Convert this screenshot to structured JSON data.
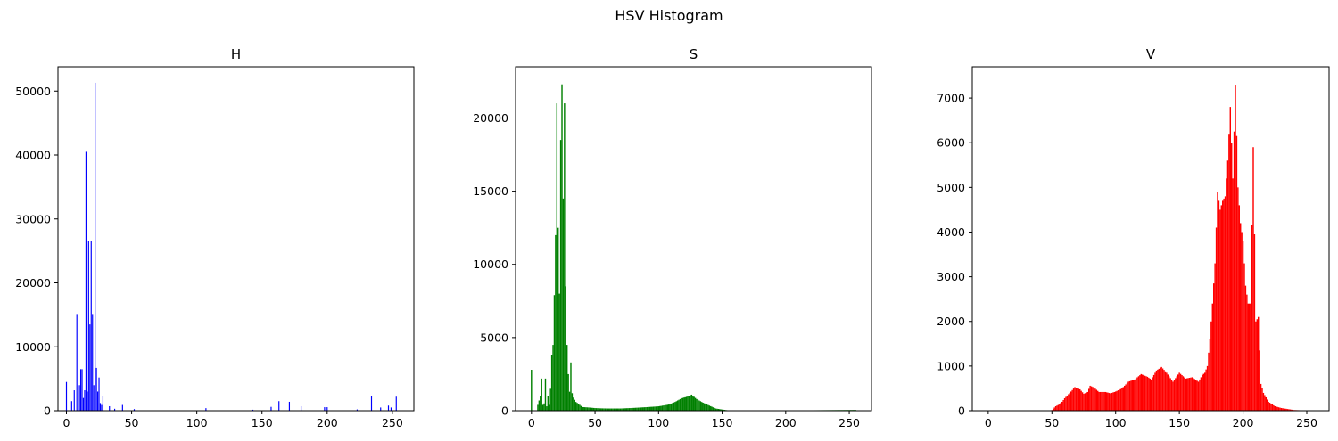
{
  "figure": {
    "suptitle": "HSV Histogram"
  },
  "chart_data": [
    {
      "type": "bar",
      "title": "H",
      "color": "#0000ff",
      "xlim": [
        -6.5,
        266.5
      ],
      "ylim": [
        0,
        53800
      ],
      "xticks": [
        0,
        50,
        100,
        150,
        200,
        250
      ],
      "yticks": [
        0,
        10000,
        20000,
        30000,
        40000,
        50000
      ],
      "bars": [
        {
          "x": 0,
          "y": 4500
        },
        {
          "x": 4,
          "y": 1500
        },
        {
          "x": 6,
          "y": 3200
        },
        {
          "x": 8,
          "y": 15000
        },
        {
          "x": 10,
          "y": 4000
        },
        {
          "x": 11,
          "y": 6500
        },
        {
          "x": 12,
          "y": 6500
        },
        {
          "x": 13,
          "y": 2000
        },
        {
          "x": 14,
          "y": 3200
        },
        {
          "x": 15,
          "y": 40500
        },
        {
          "x": 16,
          "y": 3000
        },
        {
          "x": 17,
          "y": 26500
        },
        {
          "x": 18,
          "y": 13500
        },
        {
          "x": 19,
          "y": 26500
        },
        {
          "x": 20,
          "y": 15000
        },
        {
          "x": 21,
          "y": 4000
        },
        {
          "x": 22,
          "y": 51300
        },
        {
          "x": 23,
          "y": 6700
        },
        {
          "x": 24,
          "y": 3000
        },
        {
          "x": 25,
          "y": 5200
        },
        {
          "x": 26,
          "y": 1200
        },
        {
          "x": 27,
          "y": 900
        },
        {
          "x": 28,
          "y": 2300
        },
        {
          "x": 33,
          "y": 700
        },
        {
          "x": 37,
          "y": 300
        },
        {
          "x": 43,
          "y": 900
        },
        {
          "x": 52,
          "y": 250
        },
        {
          "x": 107,
          "y": 400
        },
        {
          "x": 143,
          "y": 150
        },
        {
          "x": 157,
          "y": 600
        },
        {
          "x": 163,
          "y": 1500
        },
        {
          "x": 171,
          "y": 1400
        },
        {
          "x": 180,
          "y": 700
        },
        {
          "x": 198,
          "y": 550
        },
        {
          "x": 200,
          "y": 550
        },
        {
          "x": 223,
          "y": 200
        },
        {
          "x": 234,
          "y": 2300
        },
        {
          "x": 241,
          "y": 500
        },
        {
          "x": 247,
          "y": 800
        },
        {
          "x": 249,
          "y": 500
        },
        {
          "x": 253,
          "y": 2200
        }
      ]
    },
    {
      "type": "bar",
      "title": "S",
      "color": "#008000",
      "xlim": [
        -12.5,
        267.5
      ],
      "ylim": [
        0,
        23500
      ],
      "xticks": [
        0,
        50,
        100,
        150,
        200,
        250
      ],
      "yticks": [
        0,
        5000,
        10000,
        15000,
        20000
      ],
      "profile": [
        [
          0,
          2800
        ],
        [
          1,
          0
        ],
        [
          4,
          0
        ],
        [
          5,
          400
        ],
        [
          7,
          1000
        ],
        [
          8,
          2200
        ],
        [
          9,
          400
        ],
        [
          10,
          500
        ],
        [
          11,
          2200
        ],
        [
          12,
          300
        ],
        [
          13,
          1000
        ],
        [
          14,
          400
        ],
        [
          15,
          1500
        ],
        [
          16,
          3800
        ],
        [
          17,
          4500
        ],
        [
          18,
          7900
        ],
        [
          19,
          12000
        ],
        [
          20,
          21000
        ],
        [
          21,
          12500
        ],
        [
          22,
          8000
        ],
        [
          23,
          18500
        ],
        [
          24,
          22300
        ],
        [
          25,
          14500
        ],
        [
          26,
          21000
        ],
        [
          27,
          8500
        ],
        [
          28,
          4500
        ],
        [
          29,
          2500
        ],
        [
          30,
          1300
        ],
        [
          31,
          3300
        ],
        [
          32,
          1200
        ],
        [
          33,
          900
        ],
        [
          35,
          600
        ],
        [
          38,
          400
        ],
        [
          40,
          250
        ],
        [
          45,
          220
        ],
        [
          50,
          180
        ],
        [
          55,
          160
        ],
        [
          60,
          150
        ],
        [
          70,
          150
        ],
        [
          80,
          190
        ],
        [
          90,
          240
        ],
        [
          100,
          300
        ],
        [
          108,
          420
        ],
        [
          113,
          600
        ],
        [
          118,
          850
        ],
        [
          122,
          950
        ],
        [
          126,
          1100
        ],
        [
          130,
          800
        ],
        [
          135,
          550
        ],
        [
          140,
          350
        ],
        [
          145,
          150
        ],
        [
          150,
          80
        ],
        [
          155,
          20
        ],
        [
          160,
          5
        ],
        [
          170,
          0
        ],
        [
          255,
          50
        ]
      ]
    },
    {
      "type": "bar",
      "title": "V",
      "color": "#ff0000",
      "xlim": [
        -12.5,
        267.5
      ],
      "ylim": [
        0,
        7700
      ],
      "xticks": [
        0,
        50,
        100,
        150,
        200,
        250
      ],
      "yticks": [
        0,
        1000,
        2000,
        3000,
        4000,
        5000,
        6000,
        7000
      ],
      "profile": [
        [
          0,
          0
        ],
        [
          48,
          0
        ],
        [
          50,
          15
        ],
        [
          53,
          100
        ],
        [
          55,
          130
        ],
        [
          58,
          200
        ],
        [
          60,
          280
        ],
        [
          65,
          430
        ],
        [
          68,
          530
        ],
        [
          72,
          480
        ],
        [
          75,
          380
        ],
        [
          78,
          420
        ],
        [
          80,
          560
        ],
        [
          83,
          520
        ],
        [
          87,
          420
        ],
        [
          92,
          420
        ],
        [
          96,
          390
        ],
        [
          100,
          430
        ],
        [
          105,
          500
        ],
        [
          110,
          650
        ],
        [
          115,
          700
        ],
        [
          120,
          820
        ],
        [
          125,
          760
        ],
        [
          128,
          700
        ],
        [
          132,
          900
        ],
        [
          136,
          980
        ],
        [
          140,
          850
        ],
        [
          145,
          650
        ],
        [
          150,
          850
        ],
        [
          155,
          720
        ],
        [
          160,
          750
        ],
        [
          165,
          650
        ],
        [
          168,
          800
        ],
        [
          170,
          850
        ],
        [
          172,
          1000
        ],
        [
          174,
          1600
        ],
        [
          176,
          2400
        ],
        [
          178,
          3300
        ],
        [
          180,
          4900
        ],
        [
          182,
          4500
        ],
        [
          184,
          4700
        ],
        [
          186,
          4800
        ],
        [
          188,
          5600
        ],
        [
          190,
          6800
        ],
        [
          192,
          5200
        ],
        [
          194,
          7300
        ],
        [
          196,
          5000
        ],
        [
          198,
          4200
        ],
        [
          200,
          3800
        ],
        [
          202,
          2800
        ],
        [
          204,
          2400
        ],
        [
          206,
          2400
        ],
        [
          208,
          5900
        ],
        [
          210,
          2000
        ],
        [
          212,
          2100
        ],
        [
          214,
          600
        ],
        [
          216,
          400
        ],
        [
          220,
          200
        ],
        [
          225,
          100
        ],
        [
          230,
          60
        ],
        [
          240,
          15
        ],
        [
          255,
          0
        ]
      ]
    }
  ]
}
